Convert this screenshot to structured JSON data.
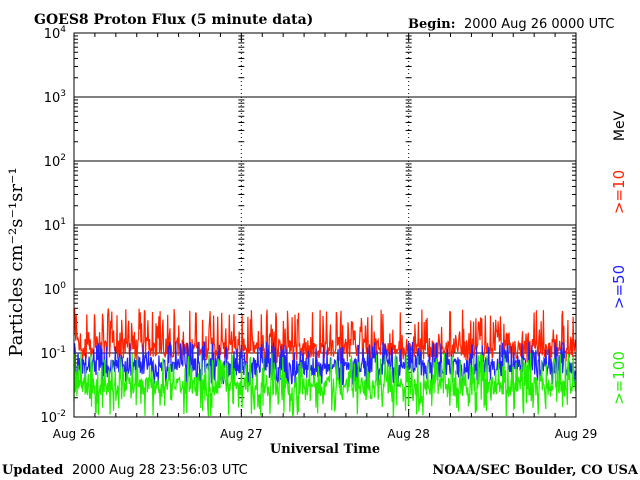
{
  "chart_data": {
    "type": "line",
    "title": "GOES8 Proton Flux (5 minute data)",
    "begin_label": "Begin:",
    "begin_value": "2000 Aug 26 0000 UTC",
    "xlabel": "Universal Time",
    "ylabel": "Particles cm⁻²s⁻¹sr⁻¹",
    "yscale": "log",
    "ylim": [
      0.01,
      10000
    ],
    "y_ticks": [
      {
        "value": 0.01,
        "base": "10",
        "exp": "-2"
      },
      {
        "value": 0.1,
        "base": "10",
        "exp": "-1"
      },
      {
        "value": 1,
        "base": "10",
        "exp": "0"
      },
      {
        "value": 10,
        "base": "10",
        "exp": "1"
      },
      {
        "value": 100,
        "base": "10",
        "exp": "2"
      },
      {
        "value": 1000,
        "base": "10",
        "exp": "3"
      },
      {
        "value": 10000,
        "base": "10",
        "exp": "4"
      }
    ],
    "x_ticks": [
      "Aug 26",
      "Aug 27",
      "Aug 28",
      "Aug 29"
    ],
    "xlim_days": [
      0,
      3
    ],
    "unit_label": "MeV",
    "series": [
      {
        "name": ">=10",
        "color": "#ff2200",
        "typical_flux": 0.12,
        "range": [
          0.07,
          0.5
        ]
      },
      {
        "name": ">=50",
        "color": "#2222ff",
        "typical_flux": 0.06,
        "range": [
          0.03,
          0.15
        ]
      },
      {
        "name": ">=100",
        "color": "#22ee00",
        "typical_flux": 0.03,
        "range": [
          0.01,
          0.1
        ]
      }
    ]
  },
  "footer": {
    "updated_label": "Updated",
    "updated_value": "2000 Aug 28 23:56:03 UTC",
    "credit": "NOAA/SEC Boulder, CO USA"
  }
}
